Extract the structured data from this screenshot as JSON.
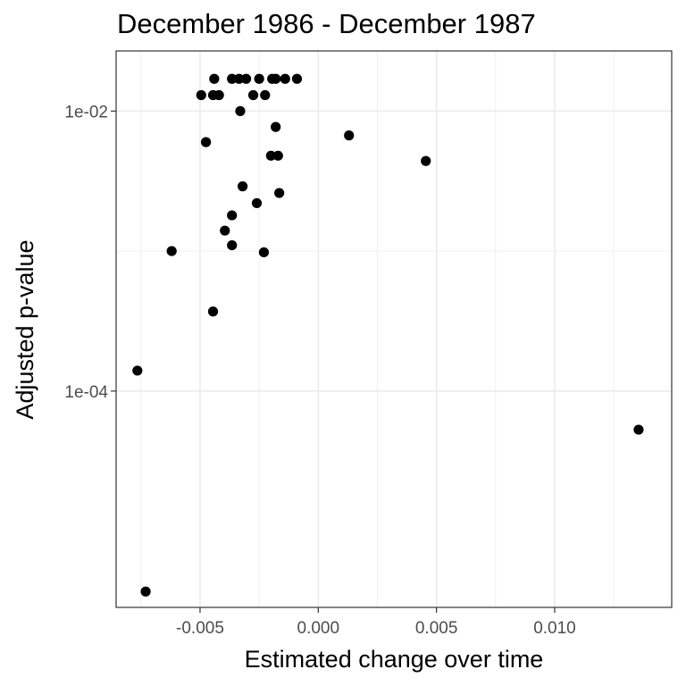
{
  "chart_data": {
    "type": "scatter",
    "title": "December 1986 - December 1987",
    "xlabel": "Estimated change over time",
    "ylabel": "Adjusted p-value",
    "x_scale": "linear",
    "y_scale": "log10",
    "xlim": [
      -0.00855,
      0.01495
    ],
    "ylim": [
      2.85e-06,
      0.0269
    ],
    "x_ticks": [
      -0.005,
      0.0,
      0.005,
      0.01
    ],
    "x_tick_labels": [
      "-0.005",
      "0.000",
      "0.005",
      "0.010"
    ],
    "y_ticks": [
      0.0001,
      0.01
    ],
    "y_tick_labels": [
      "1e-04",
      "1e-02"
    ],
    "y_minor_ticks": [
      1e-06,
      0.001
    ],
    "grid": true,
    "point_color": "#000000",
    "points": [
      {
        "x": -0.0044,
        "y": 0.017
      },
      {
        "x": -0.00365,
        "y": 0.017
      },
      {
        "x": -0.00335,
        "y": 0.017
      },
      {
        "x": -0.00305,
        "y": 0.017
      },
      {
        "x": -0.0025,
        "y": 0.017
      },
      {
        "x": -0.00195,
        "y": 0.017
      },
      {
        "x": -0.0018,
        "y": 0.017
      },
      {
        "x": -0.0014,
        "y": 0.017
      },
      {
        "x": -0.0009,
        "y": 0.017
      },
      {
        "x": -0.00495,
        "y": 0.013
      },
      {
        "x": -0.00445,
        "y": 0.013
      },
      {
        "x": -0.0042,
        "y": 0.013
      },
      {
        "x": -0.00275,
        "y": 0.013
      },
      {
        "x": -0.00225,
        "y": 0.013
      },
      {
        "x": -0.0033,
        "y": 0.01
      },
      {
        "x": -0.0018,
        "y": 0.0077
      },
      {
        "x": 0.0013,
        "y": 0.0067
      },
      {
        "x": -0.00475,
        "y": 0.006
      },
      {
        "x": -0.002,
        "y": 0.0048
      },
      {
        "x": -0.0017,
        "y": 0.0048
      },
      {
        "x": 0.00455,
        "y": 0.0044
      },
      {
        "x": -0.0032,
        "y": 0.0029
      },
      {
        "x": -0.00165,
        "y": 0.0026
      },
      {
        "x": -0.0026,
        "y": 0.0022
      },
      {
        "x": -0.00365,
        "y": 0.0018
      },
      {
        "x": -0.00395,
        "y": 0.0014
      },
      {
        "x": -0.00365,
        "y": 0.0011
      },
      {
        "x": -0.0062,
        "y": 0.001
      },
      {
        "x": -0.0023,
        "y": 0.00098
      },
      {
        "x": -0.00445,
        "y": 0.00037
      },
      {
        "x": -0.00765,
        "y": 0.00014
      },
      {
        "x": 0.01355,
        "y": 5.3e-05
      },
      {
        "x": -0.0073,
        "y": 3.7e-06
      }
    ]
  }
}
